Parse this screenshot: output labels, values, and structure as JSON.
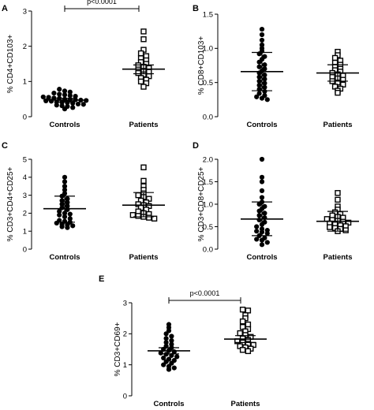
{
  "chart_data": [
    {
      "panel": "A",
      "type": "scatter",
      "ylabel": "% CD4+CD103+",
      "ylim": [
        0,
        3
      ],
      "yticks": [
        0,
        1,
        2,
        3
      ],
      "categories": [
        "Controls",
        "Patients"
      ],
      "annotation": "p<0.0001",
      "series": [
        {
          "mean": 0.47,
          "error": [
            0.42,
            0.52
          ],
          "values": [
            0.78,
            0.73,
            0.7,
            0.67,
            0.64,
            0.62,
            0.6,
            0.58,
            0.56,
            0.55,
            0.53,
            0.52,
            0.5,
            0.49,
            0.48,
            0.47,
            0.46,
            0.45,
            0.44,
            0.42,
            0.41,
            0.4,
            0.38,
            0.36,
            0.35,
            0.33,
            0.31,
            0.29,
            0.26,
            0.22
          ]
        },
        {
          "mean": 1.35,
          "error": [
            1.22,
            1.47
          ],
          "values": [
            2.42,
            2.2,
            1.9,
            1.8,
            1.72,
            1.66,
            1.6,
            1.55,
            1.5,
            1.46,
            1.42,
            1.38,
            1.34,
            1.3,
            1.27,
            1.24,
            1.2,
            1.15,
            1.1,
            1.05,
            1.0,
            0.95,
            0.85
          ]
        }
      ]
    },
    {
      "panel": "B",
      "type": "scatter",
      "ylabel": "% CD8+CD103+",
      "ylim": [
        0,
        1.5
      ],
      "yticks": [
        0,
        0.5,
        1.0,
        1.5
      ],
      "categories": [
        "Controls",
        "Patients"
      ],
      "series": [
        {
          "mean": 0.66,
          "error": [
            0.38,
            0.94
          ],
          "values": [
            1.28,
            1.2,
            1.12,
            1.05,
            1.0,
            0.96,
            0.92,
            0.88,
            0.84,
            0.8,
            0.76,
            0.73,
            0.7,
            0.67,
            0.64,
            0.61,
            0.58,
            0.55,
            0.52,
            0.49,
            0.46,
            0.43,
            0.4,
            0.37,
            0.34,
            0.31,
            0.29,
            0.27,
            0.25
          ]
        },
        {
          "mean": 0.64,
          "error": [
            0.52,
            0.76
          ],
          "values": [
            0.95,
            0.9,
            0.86,
            0.82,
            0.79,
            0.76,
            0.73,
            0.7,
            0.68,
            0.66,
            0.64,
            0.62,
            0.6,
            0.58,
            0.56,
            0.54,
            0.52,
            0.5,
            0.47,
            0.44,
            0.41,
            0.38,
            0.35
          ]
        }
      ]
    },
    {
      "panel": "C",
      "type": "scatter",
      "ylabel": "% CD3+CD4+CD25+",
      "ylim": [
        0,
        5
      ],
      "yticks": [
        0,
        1,
        2,
        3,
        4,
        5
      ],
      "categories": [
        "Controls",
        "Patients"
      ],
      "series": [
        {
          "mean": 2.25,
          "error": [
            1.5,
            2.95
          ],
          "values": [
            4.0,
            3.75,
            3.5,
            3.3,
            3.1,
            2.95,
            2.8,
            2.7,
            2.6,
            2.5,
            2.4,
            2.3,
            2.2,
            2.1,
            2.0,
            1.95,
            1.9,
            1.8,
            1.7,
            1.6,
            1.55,
            1.5,
            1.45,
            1.4,
            1.35,
            1.3,
            1.25,
            1.2
          ]
        },
        {
          "mean": 2.45,
          "error": [
            1.8,
            3.15
          ],
          "values": [
            4.55,
            3.8,
            3.5,
            3.3,
            3.1,
            3.0,
            2.9,
            2.8,
            2.7,
            2.6,
            2.5,
            2.45,
            2.4,
            2.3,
            2.2,
            2.1,
            2.0,
            1.95,
            1.9,
            1.85,
            1.8,
            1.75,
            1.7
          ]
        }
      ]
    },
    {
      "panel": "D",
      "type": "scatter",
      "ylabel": "% CD3+CD8+CD25+",
      "ylim": [
        0,
        2
      ],
      "yticks": [
        0,
        0.5,
        1.0,
        1.5,
        2.0
      ],
      "categories": [
        "Controls",
        "Patients"
      ],
      "series": [
        {
          "mean": 0.67,
          "error": [
            0.3,
            1.05
          ],
          "values": [
            2.0,
            1.6,
            1.5,
            1.3,
            1.15,
            1.05,
            1.0,
            0.95,
            0.9,
            0.85,
            0.8,
            0.75,
            0.7,
            0.65,
            0.6,
            0.55,
            0.5,
            0.45,
            0.42,
            0.4,
            0.38,
            0.35,
            0.3,
            0.25,
            0.22,
            0.2,
            0.15,
            0.1
          ]
        },
        {
          "mean": 0.62,
          "error": [
            0.4,
            0.84
          ],
          "values": [
            1.25,
            1.1,
            0.95,
            0.88,
            0.82,
            0.78,
            0.75,
            0.72,
            0.7,
            0.67,
            0.65,
            0.63,
            0.61,
            0.59,
            0.57,
            0.55,
            0.53,
            0.51,
            0.49,
            0.47,
            0.45,
            0.42,
            0.4
          ]
        }
      ]
    },
    {
      "panel": "E",
      "type": "scatter",
      "ylabel": "% CD3+CD69+",
      "ylim": [
        0,
        3
      ],
      "yticks": [
        0,
        1,
        2,
        3
      ],
      "categories": [
        "Controls",
        "Patients"
      ],
      "annotation": "p<0.0001",
      "series": [
        {
          "mean": 1.45,
          "error": [
            1.35,
            1.55
          ],
          "values": [
            2.3,
            2.2,
            2.1,
            2.0,
            1.92,
            1.85,
            1.78,
            1.72,
            1.66,
            1.6,
            1.55,
            1.5,
            1.46,
            1.42,
            1.38,
            1.34,
            1.3,
            1.26,
            1.22,
            1.18,
            1.14,
            1.1,
            1.05,
            1.0,
            0.95,
            0.9,
            0.85
          ]
        },
        {
          "mean": 1.83,
          "error": [
            1.72,
            1.94
          ],
          "values": [
            2.78,
            2.75,
            2.6,
            2.5,
            2.4,
            2.3,
            2.22,
            2.15,
            2.08,
            2.02,
            1.96,
            1.9,
            1.85,
            1.8,
            1.76,
            1.72,
            1.68,
            1.64,
            1.6,
            1.56,
            1.52,
            1.48,
            1.44
          ]
        }
      ]
    }
  ]
}
